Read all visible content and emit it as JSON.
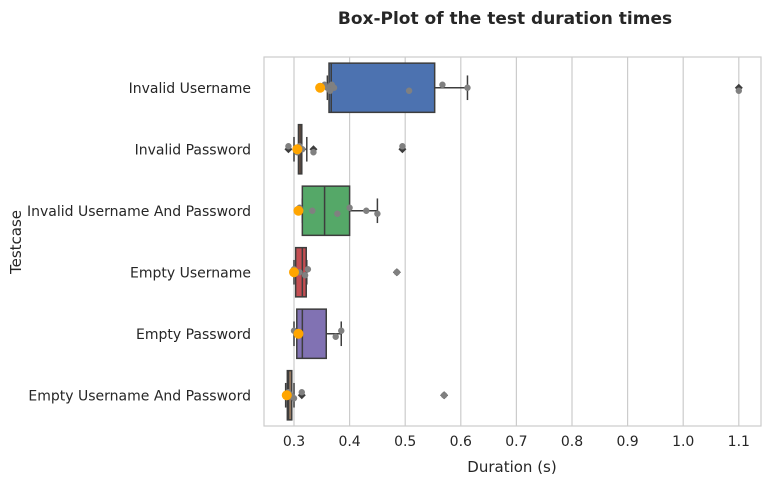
{
  "chart_data": {
    "type": "box",
    "orientation": "horizontal",
    "title": "Box-Plot of the test duration times",
    "xlabel": "Duration (s)",
    "ylabel": "Testcase",
    "xlim": [
      0.25,
      1.14
    ],
    "xticks": [
      0.3,
      0.4,
      0.5,
      0.6,
      0.7,
      0.8,
      0.9,
      1.0,
      1.1
    ],
    "xtick_labels": [
      "0.3",
      "0.4",
      "0.5",
      "0.6",
      "0.7",
      "0.8",
      "0.9",
      "1.0",
      "1.1"
    ],
    "grid": "vertical",
    "categories": [
      "Invalid Username",
      "Invalid Password",
      "Invalid Username And Password",
      "Empty Username",
      "Empty Password",
      "Empty Username And Password"
    ],
    "boxes": [
      {
        "color": "#4c72b0",
        "whislo": 0.36,
        "q1": 0.363,
        "med": 0.367,
        "q3": 0.553,
        "whishi": 0.612,
        "fliers": [
          1.1
        ]
      },
      {
        "color": "#dd8452",
        "whislo": 0.3,
        "q1": 0.308,
        "med": 0.311,
        "q3": 0.314,
        "whishi": 0.323,
        "fliers": [
          0.29,
          0.335,
          0.495
        ]
      },
      {
        "color": "#55a868",
        "whislo": 0.315,
        "q1": 0.315,
        "med": 0.355,
        "q3": 0.4,
        "whishi": 0.45,
        "fliers": []
      },
      {
        "color": "#c44e52",
        "whislo": 0.3,
        "q1": 0.303,
        "med": 0.315,
        "q3": 0.322,
        "whishi": 0.323,
        "fliers": [
          0.485
        ]
      },
      {
        "color": "#8172b3",
        "whislo": 0.3,
        "q1": 0.305,
        "med": 0.315,
        "q3": 0.358,
        "whishi": 0.385,
        "fliers": []
      },
      {
        "color": "#937860",
        "whislo": 0.285,
        "q1": 0.288,
        "med": 0.29,
        "q3": 0.296,
        "whishi": 0.3,
        "fliers": [
          0.314,
          0.57
        ]
      }
    ],
    "observations": [
      [
        0.355,
        0.36,
        0.365,
        0.368,
        0.372,
        0.507,
        0.567,
        0.612,
        1.1
      ],
      [
        0.29,
        0.303,
        0.306,
        0.31,
        0.315,
        0.335,
        0.495
      ],
      [
        0.31,
        0.333,
        0.378,
        0.4,
        0.43,
        0.45
      ],
      [
        0.3,
        0.31,
        0.32,
        0.325,
        0.485
      ],
      [
        0.3,
        0.305,
        0.375,
        0.385
      ],
      [
        0.29,
        0.295,
        0.3,
        0.314,
        0.57
      ]
    ],
    "means": [
      0.347,
      0.306,
      0.308,
      0.3,
      0.308,
      0.287
    ],
    "mean_color": "#ffa500",
    "point_color": "#808080"
  }
}
